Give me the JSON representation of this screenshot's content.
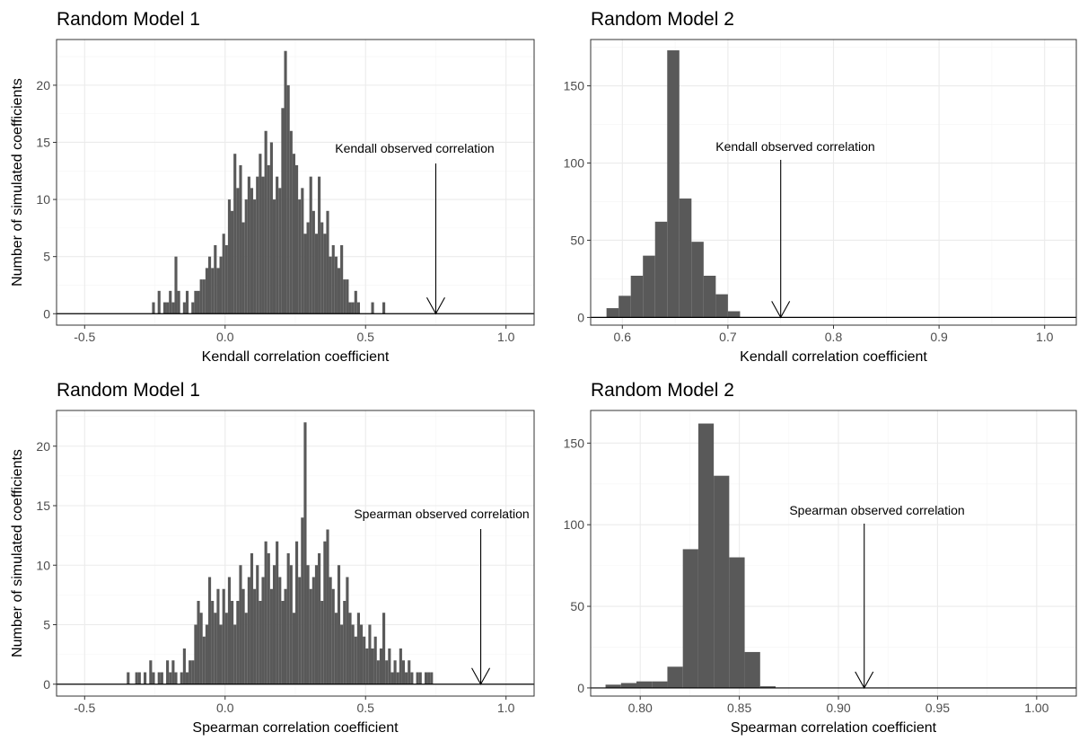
{
  "y_axis_label": "Number of simulated coefficients",
  "chart_data": [
    {
      "type": "bar",
      "title": "Random Model 1",
      "xlabel": "Kendall correlation coefficient",
      "ylabel": "Number of simulated coefficients",
      "xlim": [
        -0.6,
        1.1
      ],
      "ylim": [
        -1,
        24
      ],
      "xticks": [
        -0.5,
        0.0,
        0.5,
        1.0
      ],
      "xtick_labels": [
        "-0.5",
        "0.0",
        "0.5",
        "1.0"
      ],
      "yticks": [
        0,
        5,
        10,
        15,
        20
      ],
      "ytick_labels": [
        "0",
        "5",
        "10",
        "15",
        "20"
      ],
      "bin_width": 0.01,
      "bin_starts": [
        -0.26,
        -0.25,
        -0.24,
        -0.23,
        -0.22,
        -0.21,
        -0.2,
        -0.19,
        -0.18,
        -0.17,
        -0.16,
        -0.15,
        -0.14,
        -0.13,
        -0.12,
        -0.11,
        -0.1,
        -0.09,
        -0.08,
        -0.07,
        -0.06,
        -0.05,
        -0.04,
        -0.03,
        -0.02,
        -0.01,
        0.0,
        0.01,
        0.02,
        0.03,
        0.04,
        0.05,
        0.06,
        0.07,
        0.08,
        0.09,
        0.1,
        0.11,
        0.12,
        0.13,
        0.14,
        0.15,
        0.16,
        0.17,
        0.18,
        0.19,
        0.2,
        0.21,
        0.22,
        0.23,
        0.24,
        0.25,
        0.26,
        0.27,
        0.28,
        0.29,
        0.3,
        0.31,
        0.32,
        0.33,
        0.34,
        0.35,
        0.36,
        0.37,
        0.38,
        0.39,
        0.4,
        0.41,
        0.42,
        0.43,
        0.44,
        0.45,
        0.46,
        0.47,
        0.48,
        0.49,
        0.5,
        0.51,
        0.52,
        0.53,
        0.54,
        0.55,
        0.56
      ],
      "values": [
        1,
        0,
        2,
        0,
        1,
        1,
        2,
        1,
        5,
        2,
        0,
        1,
        2,
        0,
        1,
        2,
        2,
        3,
        3,
        4,
        5,
        4,
        6,
        4,
        5,
        7,
        6,
        10,
        9,
        14,
        11,
        13,
        8,
        10,
        12,
        11,
        10,
        12,
        14,
        12,
        16,
        13,
        15,
        10,
        12,
        11,
        18,
        23,
        20,
        16,
        14,
        13,
        10,
        11,
        7,
        8,
        12,
        9,
        7,
        12,
        8,
        7,
        9,
        5,
        6,
        5,
        4,
        6,
        3,
        3,
        1,
        1,
        2,
        1,
        0,
        0,
        0,
        0,
        1,
        0,
        0,
        0,
        1
      ],
      "annotation": "Kendall observed correlation",
      "observed_value": 0.75
    },
    {
      "type": "bar",
      "title": "Random Model 2",
      "xlabel": "Kendall correlation coefficient",
      "ylabel": "",
      "xlim": [
        0.57,
        1.03
      ],
      "ylim": [
        -5,
        180
      ],
      "xticks": [
        0.6,
        0.7,
        0.8,
        0.9,
        1.0
      ],
      "xtick_labels": [
        "0.6",
        "0.7",
        "0.8",
        "0.9",
        "1.0"
      ],
      "yticks": [
        0,
        50,
        100,
        150
      ],
      "ytick_labels": [
        "0",
        "50",
        "100",
        "150"
      ],
      "bin_width": 0.0115,
      "bin_starts": [
        0.585,
        0.5965,
        0.608,
        0.6195,
        0.631,
        0.6425,
        0.654,
        0.6655,
        0.677,
        0.6885,
        0.7
      ],
      "values": [
        6,
        14,
        27,
        40,
        62,
        173,
        77,
        49,
        27,
        15,
        4
      ],
      "annotation": "Kendall observed correlation",
      "observed_value": 0.75
    },
    {
      "type": "bar",
      "title": "Random Model 1",
      "xlabel": "Spearman correlation coefficient",
      "ylabel": "Number of simulated coefficients",
      "xlim": [
        -0.6,
        1.1
      ],
      "ylim": [
        -1,
        23
      ],
      "xticks": [
        -0.5,
        0.0,
        0.5,
        1.0
      ],
      "xtick_labels": [
        "-0.5",
        "0.0",
        "0.5",
        "1.0"
      ],
      "yticks": [
        0,
        5,
        10,
        15,
        20
      ],
      "ytick_labels": [
        "0",
        "5",
        "10",
        "15",
        "20"
      ],
      "bin_width": 0.01,
      "bin_starts": [
        -0.35,
        -0.34,
        -0.33,
        -0.32,
        -0.31,
        -0.3,
        -0.29,
        -0.28,
        -0.27,
        -0.26,
        -0.25,
        -0.24,
        -0.23,
        -0.22,
        -0.21,
        -0.2,
        -0.19,
        -0.18,
        -0.17,
        -0.16,
        -0.15,
        -0.14,
        -0.13,
        -0.12,
        -0.11,
        -0.1,
        -0.09,
        -0.08,
        -0.07,
        -0.06,
        -0.05,
        -0.04,
        -0.03,
        -0.02,
        -0.01,
        0.0,
        0.01,
        0.02,
        0.03,
        0.04,
        0.05,
        0.06,
        0.07,
        0.08,
        0.09,
        0.1,
        0.11,
        0.12,
        0.13,
        0.14,
        0.15,
        0.16,
        0.17,
        0.18,
        0.19,
        0.2,
        0.21,
        0.22,
        0.23,
        0.24,
        0.25,
        0.26,
        0.27,
        0.28,
        0.29,
        0.3,
        0.31,
        0.32,
        0.33,
        0.34,
        0.35,
        0.36,
        0.37,
        0.38,
        0.39,
        0.4,
        0.41,
        0.42,
        0.43,
        0.44,
        0.45,
        0.46,
        0.47,
        0.48,
        0.49,
        0.5,
        0.51,
        0.52,
        0.53,
        0.54,
        0.55,
        0.56,
        0.57,
        0.58,
        0.59,
        0.6,
        0.61,
        0.62,
        0.63,
        0.64,
        0.65,
        0.66,
        0.67,
        0.68,
        0.69,
        0.7,
        0.71,
        0.72,
        0.73
      ],
      "values": [
        1,
        0,
        0,
        1,
        1,
        0,
        1,
        0,
        2,
        1,
        0,
        1,
        1,
        0,
        2,
        1,
        2,
        1,
        0,
        1,
        3,
        1,
        2,
        2,
        5,
        7,
        6,
        4,
        5,
        9,
        7,
        6,
        8,
        5,
        8,
        6,
        9,
        7,
        5,
        7,
        10,
        8,
        6,
        9,
        11,
        8,
        10,
        7,
        9,
        12,
        11,
        8,
        10,
        12,
        9,
        7,
        8,
        11,
        10,
        6,
        12,
        9,
        14,
        22,
        10,
        8,
        9,
        10,
        11,
        7,
        12,
        13,
        9,
        8,
        6,
        10,
        5,
        7,
        9,
        6,
        5,
        4,
        6,
        5,
        4,
        3,
        5,
        3,
        4,
        2,
        3,
        6,
        2,
        3,
        1,
        2,
        1,
        3,
        2,
        1,
        2,
        1,
        0,
        1,
        1,
        0,
        1,
        1,
        1
      ],
      "annotation": "Spearman observed correlation",
      "observed_value": 0.91
    },
    {
      "type": "bar",
      "title": "Random Model 2",
      "xlabel": "Spearman correlation coefficient",
      "ylabel": "",
      "xlim": [
        0.775,
        1.02
      ],
      "ylim": [
        -5,
        170
      ],
      "xticks": [
        0.8,
        0.85,
        0.9,
        0.95,
        1.0
      ],
      "xtick_labels": [
        "0.80",
        "0.85",
        "0.90",
        "0.95",
        "1.00"
      ],
      "yticks": [
        0,
        50,
        100,
        150
      ],
      "ytick_labels": [
        "0",
        "50",
        "100",
        "150"
      ],
      "bin_width": 0.0078,
      "bin_starts": [
        0.7825,
        0.7903,
        0.7981,
        0.8059,
        0.8137,
        0.8215,
        0.8293,
        0.8371,
        0.8449,
        0.8527,
        0.8605,
        0.8683,
        0.8761
      ],
      "values": [
        2,
        3,
        4,
        4,
        13,
        85,
        162,
        130,
        80,
        22,
        1,
        0,
        0
      ],
      "annotation": "Spearman observed correlation",
      "observed_value": 0.913
    }
  ]
}
